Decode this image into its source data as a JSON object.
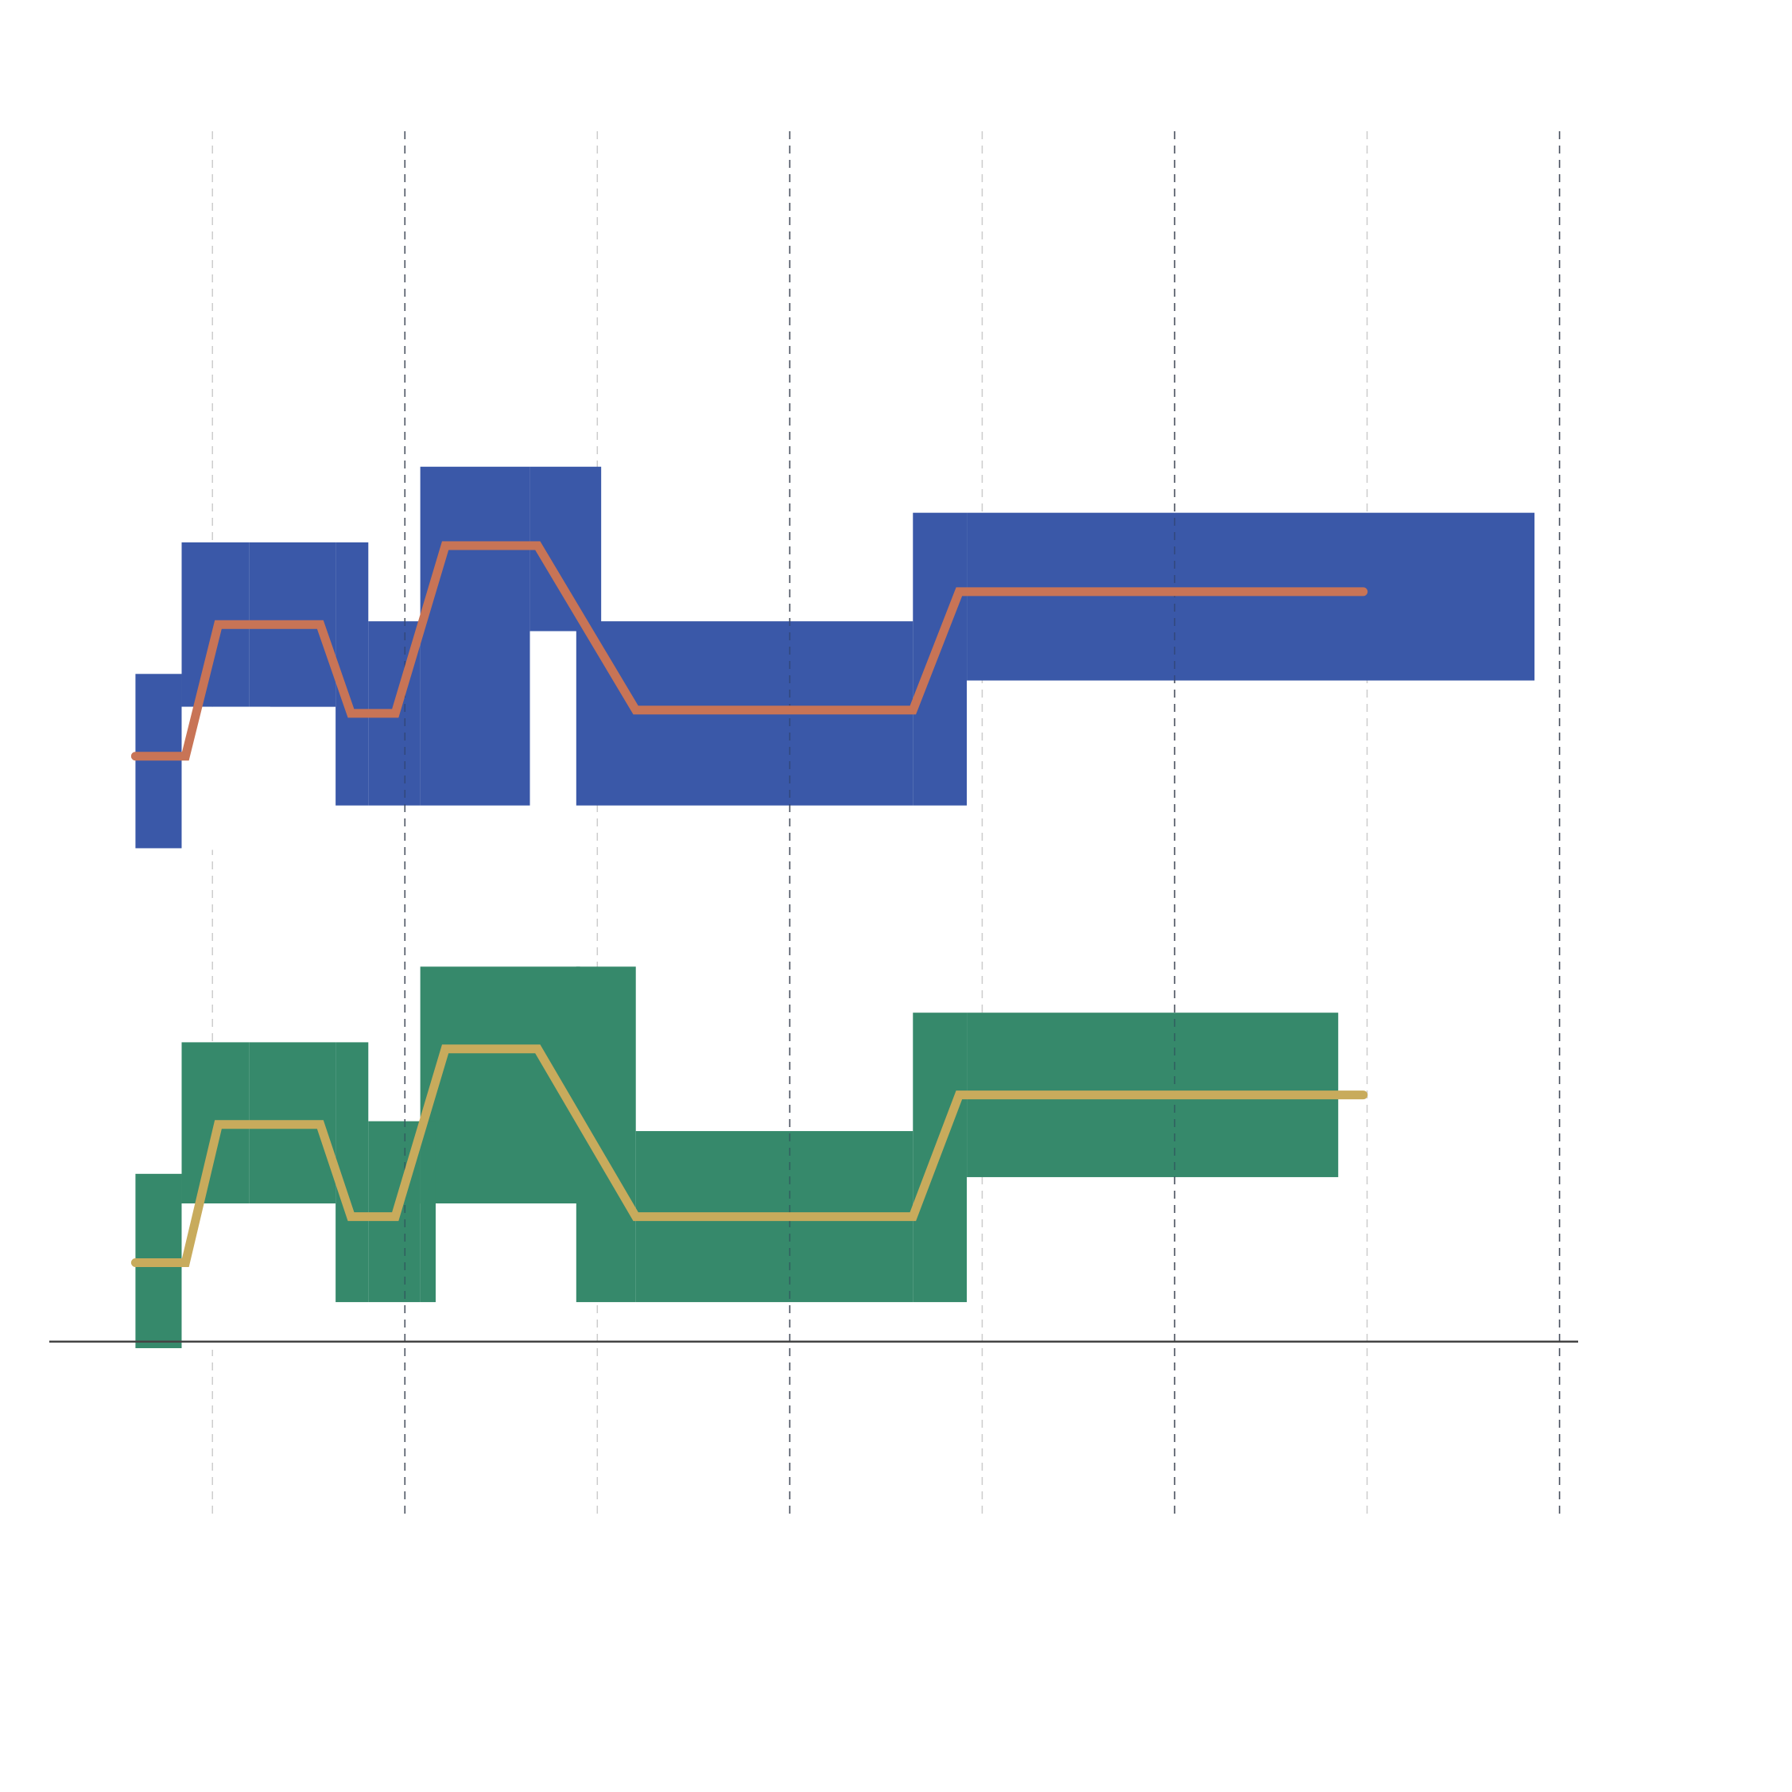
{
  "chart_data": {
    "type": "area",
    "title": "",
    "xlabel": "",
    "ylabel": "",
    "grid": {
      "vertical": true,
      "horizontal": false,
      "style": "dashed"
    },
    "x_gridlines": [
      1,
      2,
      3,
      4,
      5,
      6,
      7,
      8
    ],
    "xlim": [
      0.02,
      8.2
    ],
    "ylim": [
      -0.62,
      3.6
    ],
    "series": [
      {
        "color_band": "#3a58a8",
        "color_line": "#c87456",
        "band_steps": [
          {
            "x0": 0.6,
            "x1": 0.84,
            "lower": 1.42,
            "upper": 1.95
          },
          {
            "x0": 0.84,
            "x1": 1.19,
            "lower": 1.85,
            "upper": 2.35
          },
          {
            "x0": 1.19,
            "x1": 1.64,
            "lower": 1.85,
            "upper": 2.35
          },
          {
            "x0": 1.64,
            "x1": 1.81,
            "lower": 1.55,
            "upper": 2.35
          },
          {
            "x0": 1.81,
            "x1": 2.08,
            "lower": 1.55,
            "upper": 2.11
          },
          {
            "x0": 2.08,
            "x1": 2.65,
            "lower": 1.55,
            "upper": 2.58
          },
          {
            "x0": 2.65,
            "x1": 3.02,
            "lower": 2.08,
            "upper": 2.58
          },
          {
            "x0": 2.89,
            "x1": 4.64,
            "lower": 1.55,
            "upper": 2.11
          },
          {
            "x0": 4.64,
            "x1": 4.92,
            "lower": 1.55,
            "upper": 2.44
          },
          {
            "x0": 4.92,
            "x1": 7.87,
            "lower": 1.93,
            "upper": 2.44
          }
        ],
        "line": [
          [
            0.6,
            1.7
          ],
          [
            0.86,
            1.7
          ],
          [
            1.03,
            2.1
          ],
          [
            1.56,
            2.1
          ],
          [
            1.72,
            1.83
          ],
          [
            1.95,
            1.83
          ],
          [
            2.21,
            2.34
          ],
          [
            2.69,
            2.34
          ],
          [
            3.2,
            1.84
          ],
          [
            4.64,
            1.84
          ],
          [
            4.88,
            2.2
          ],
          [
            6.98,
            2.2
          ]
        ]
      },
      {
        "color_band": "#36896b",
        "color_line": "#c8ab5c",
        "band_steps": [
          {
            "x0": 0.6,
            "x1": 0.84,
            "lower": -0.1,
            "upper": 0.43
          },
          {
            "x0": 0.84,
            "x1": 1.19,
            "lower": 0.34,
            "upper": 0.83
          },
          {
            "x0": 1.19,
            "x1": 1.64,
            "lower": 0.34,
            "upper": 0.83
          },
          {
            "x0": 1.64,
            "x1": 1.81,
            "lower": 0.04,
            "upper": 0.83
          },
          {
            "x0": 1.81,
            "x1": 2.08,
            "lower": 0.04,
            "upper": 0.59
          },
          {
            "x0": 2.08,
            "x1": 2.91,
            "lower": 0.34,
            "upper": 1.06
          },
          {
            "x0": 2.08,
            "x1": 2.16,
            "lower": 0.04,
            "upper": 0.59
          },
          {
            "x0": 2.89,
            "x1": 3.2,
            "lower": 0.04,
            "upper": 1.06
          },
          {
            "x0": 3.2,
            "x1": 4.64,
            "lower": 0.04,
            "upper": 0.56
          },
          {
            "x0": 4.64,
            "x1": 4.92,
            "lower": 0.04,
            "upper": 0.92
          },
          {
            "x0": 4.92,
            "x1": 6.85,
            "lower": 0.42,
            "upper": 0.92
          }
        ],
        "line": [
          [
            0.6,
            0.16
          ],
          [
            0.86,
            0.16
          ],
          [
            1.03,
            0.58
          ],
          [
            1.56,
            0.58
          ],
          [
            1.72,
            0.3
          ],
          [
            1.95,
            0.3
          ],
          [
            2.21,
            0.81
          ],
          [
            2.69,
            0.81
          ],
          [
            3.2,
            0.3
          ],
          [
            4.64,
            0.3
          ],
          [
            4.88,
            0.67
          ],
          [
            6.98,
            0.67
          ]
        ]
      }
    ],
    "axis_line_y": -0.08,
    "axis_color": "#444444",
    "grid_color": "#666666",
    "minor_grid_color": "#cccccc"
  }
}
